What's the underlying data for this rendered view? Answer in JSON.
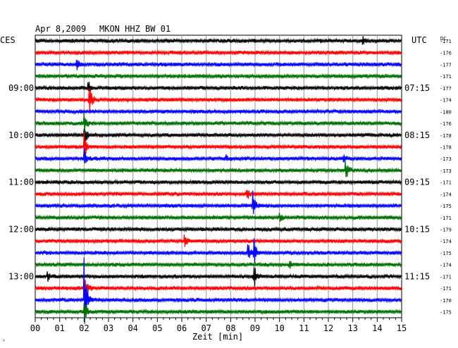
{
  "header": {
    "date": "Apr 8,2009",
    "station": "MKON HHZ BW 01",
    "left_tz": "CES",
    "right_tz": "UTC",
    "dc_label": "DC",
    "corner_mark": "ᵛ"
  },
  "chart_data": {
    "type": "line",
    "title": "Apr 8,2009    MKON HHZ BW 01",
    "xlabel": "Zeit [min]",
    "x_ticks": [
      "00",
      "01",
      "02",
      "03",
      "04",
      "05",
      "06",
      "07",
      "08",
      "09",
      "10",
      "11",
      "12",
      "13",
      "14",
      "15"
    ],
    "xlim": [
      0,
      15
    ],
    "trace_colors": [
      "#000000",
      "#ff0000",
      "#0000ff",
      "#007000"
    ],
    "left_hour_labels": [
      {
        "trace": 4,
        "label": "09:00"
      },
      {
        "trace": 8,
        "label": "10:00"
      },
      {
        "trace": 12,
        "label": "11:00"
      },
      {
        "trace": 16,
        "label": "12:00"
      },
      {
        "trace": 20,
        "label": "13:00"
      }
    ],
    "right_utc_labels": [
      {
        "trace": 4,
        "label": "07:15"
      },
      {
        "trace": 8,
        "label": "08:15"
      },
      {
        "trace": 12,
        "label": "09:15"
      },
      {
        "trace": 16,
        "label": "10:15"
      },
      {
        "trace": 20,
        "label": "11:15"
      }
    ],
    "dc_offsets": [
      "-171",
      "-176",
      "-177",
      "-171",
      "-177",
      "-174",
      "-180",
      "-176",
      "-178",
      "-178",
      "-173",
      "-173",
      "-171",
      "-174",
      "-175",
      "-171",
      "-179",
      "-174",
      "-175",
      "-174",
      "-171",
      "-171",
      "-170",
      "-175"
    ],
    "events": [
      {
        "trace": 2,
        "minute": 1.7,
        "amp": 0.5
      },
      {
        "trace": 4,
        "minute": 2.15,
        "amp": 0.7
      },
      {
        "trace": 5,
        "minute": 2.2,
        "amp": 1.6
      },
      {
        "trace": 7,
        "minute": 2.0,
        "amp": 0.8
      },
      {
        "trace": 8,
        "minute": 2.0,
        "amp": 1.0
      },
      {
        "trace": 9,
        "minute": 2.0,
        "amp": 1.2
      },
      {
        "trace": 10,
        "minute": 2.0,
        "amp": 1.0
      },
      {
        "trace": 10,
        "minute": 7.8,
        "amp": 0.4
      },
      {
        "trace": 10,
        "minute": 12.6,
        "amp": 0.35
      },
      {
        "trace": 11,
        "minute": 12.7,
        "amp": 1.0
      },
      {
        "trace": 0,
        "minute": 13.4,
        "amp": 0.4
      },
      {
        "trace": 13,
        "minute": 8.65,
        "amp": 0.6
      },
      {
        "trace": 14,
        "minute": 8.9,
        "amp": 1.3
      },
      {
        "trace": 15,
        "minute": 10.0,
        "amp": 0.3
      },
      {
        "trace": 17,
        "minute": 6.1,
        "amp": 0.5
      },
      {
        "trace": 18,
        "minute": 8.7,
        "amp": 0.9
      },
      {
        "trace": 18,
        "minute": 8.95,
        "amp": 1.4
      },
      {
        "trace": 19,
        "minute": 10.4,
        "amp": 0.3
      },
      {
        "trace": 20,
        "minute": 0.5,
        "amp": 0.4
      },
      {
        "trace": 20,
        "minute": 8.95,
        "amp": 1.2
      },
      {
        "trace": 21,
        "minute": 2.0,
        "amp": 1.4
      },
      {
        "trace": 22,
        "minute": 2.0,
        "amp": 4.5
      },
      {
        "trace": 23,
        "minute": 2.0,
        "amp": 1.3
      }
    ],
    "grid": true
  }
}
